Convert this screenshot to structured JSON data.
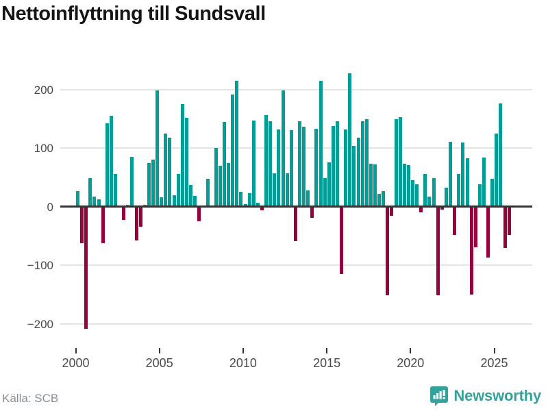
{
  "header": {
    "title": "Nettoinflyttning till Sundsvall"
  },
  "footer": {
    "source": "Källa: SCB",
    "brand": "Newsworthy"
  },
  "colors": {
    "positive": "#009E96",
    "negative": "#98003D",
    "zero_line": "#333333",
    "grid": "#E4E4E4",
    "tick_label": "#4A4A4A",
    "title": "#151515",
    "source_text": "#8A8F98",
    "brand_teal": "#33A29C",
    "background": "#FFFFFF"
  },
  "chart_data": {
    "type": "bar",
    "title": "Nettoinflyttning till Sundsvall",
    "xlabel": "",
    "ylabel": "",
    "unit": "persons per quarter",
    "frequency": "quarterly",
    "grid": "horizontal",
    "legend": "none",
    "ylim": [
      -230,
      245
    ],
    "yticks": [
      200,
      100,
      0,
      -100,
      -200
    ],
    "xticks": [
      2000,
      2005,
      2010,
      2015,
      2020,
      2025
    ],
    "series_name": "Nettoinflyttning",
    "years": [
      {
        "year": 2000,
        "q": [
          26,
          -63,
          -209,
          48
        ]
      },
      {
        "year": 2001,
        "q": [
          17,
          12,
          -62,
          142
        ]
      },
      {
        "year": 2002,
        "q": [
          155,
          56,
          0,
          -23
        ]
      },
      {
        "year": 2003,
        "q": [
          3,
          85,
          -58,
          -35
        ]
      },
      {
        "year": 2004,
        "q": [
          3,
          74,
          80,
          198
        ]
      },
      {
        "year": 2005,
        "q": [
          16,
          124,
          118,
          19
        ]
      },
      {
        "year": 2006,
        "q": [
          55,
          175,
          151,
          37
        ]
      },
      {
        "year": 2007,
        "q": [
          18,
          -25,
          0,
          47
        ]
      },
      {
        "year": 2008,
        "q": [
          0,
          100,
          70,
          145
        ]
      },
      {
        "year": 2009,
        "q": [
          74,
          191,
          215,
          25
        ]
      },
      {
        "year": 2010,
        "q": [
          4,
          23,
          147,
          6
        ]
      },
      {
        "year": 2011,
        "q": [
          -7,
          156,
          146,
          57
        ]
      },
      {
        "year": 2012,
        "q": [
          132,
          198,
          57,
          130
        ]
      },
      {
        "year": 2013,
        "q": [
          -59,
          146,
          136,
          28
        ]
      },
      {
        "year": 2014,
        "q": [
          -19,
          133,
          215,
          49
        ]
      },
      {
        "year": 2015,
        "q": [
          75,
          137,
          146,
          -115
        ]
      },
      {
        "year": 2016,
        "q": [
          132,
          228,
          104,
          117
        ]
      },
      {
        "year": 2017,
        "q": [
          146,
          149,
          73,
          72
        ]
      },
      {
        "year": 2018,
        "q": [
          22,
          26,
          -151,
          -16
        ]
      },
      {
        "year": 2019,
        "q": [
          149,
          153,
          73,
          71
        ]
      },
      {
        "year": 2020,
        "q": [
          45,
          38,
          -10,
          55
        ]
      },
      {
        "year": 2021,
        "q": [
          17,
          48,
          -152,
          -5
        ]
      },
      {
        "year": 2022,
        "q": [
          32,
          110,
          -49,
          55
        ]
      },
      {
        "year": 2023,
        "q": [
          109,
          82,
          -150,
          -70
        ]
      },
      {
        "year": 2024,
        "q": [
          38,
          84,
          -87,
          47
        ]
      },
      {
        "year": 2025,
        "q": [
          125,
          176,
          -71,
          -49
        ]
      }
    ]
  }
}
